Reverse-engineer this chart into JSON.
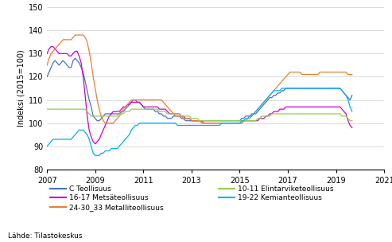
{
  "ylabel": "Indeksi (2015=100)",
  "ylim": [
    80,
    150
  ],
  "yticks": [
    80,
    90,
    100,
    110,
    120,
    130,
    140,
    150
  ],
  "xlim_start": 2007.0,
  "xlim_end": 2021.0,
  "xtick_years": [
    2007,
    2009,
    2011,
    2013,
    2015,
    2017,
    2019,
    2021
  ],
  "source_text": "Lähde: Tilastokeskus",
  "series": {
    "C Teollisuus": {
      "color": "#4472C4",
      "data": [
        120,
        122,
        124,
        126,
        127,
        126,
        125,
        126,
        127,
        126,
        125,
        124,
        124,
        127,
        128,
        127,
        126,
        124,
        122,
        118,
        114,
        110,
        107,
        103,
        102,
        101,
        101,
        102,
        103,
        104,
        104,
        104,
        104,
        104,
        104,
        104,
        104,
        105,
        105,
        106,
        107,
        108,
        109,
        110,
        110,
        109,
        109,
        108,
        107,
        106,
        106,
        106,
        106,
        106,
        105,
        105,
        104,
        104,
        103,
        103,
        102,
        102,
        102,
        103,
        103,
        103,
        103,
        102,
        102,
        101,
        101,
        101,
        101,
        101,
        101,
        101,
        101,
        101,
        101,
        101,
        101,
        101,
        101,
        101,
        101,
        101,
        101,
        101,
        101,
        101,
        101,
        101,
        101,
        101,
        101,
        101,
        101,
        102,
        102,
        103,
        103,
        103,
        104,
        104,
        104,
        105,
        106,
        107,
        108,
        109,
        110,
        111,
        111,
        112,
        112,
        113,
        113,
        114,
        114,
        115,
        115,
        115,
        115,
        115,
        115,
        115,
        115,
        115,
        115,
        115,
        115,
        115,
        115,
        115,
        115,
        115,
        115,
        115,
        115,
        115,
        115,
        115,
        115,
        115,
        115,
        115,
        115,
        114,
        113,
        112,
        111,
        110,
        112
      ]
    },
    "16-17 Metsäteollisuus": {
      "color": "#CC00CC",
      "data": [
        130,
        132,
        133,
        133,
        132,
        131,
        130,
        130,
        130,
        130,
        130,
        129,
        129,
        130,
        131,
        131,
        129,
        126,
        120,
        112,
        103,
        97,
        94,
        92,
        91,
        92,
        93,
        95,
        97,
        99,
        101,
        103,
        104,
        105,
        105,
        105,
        105,
        106,
        107,
        107,
        108,
        108,
        109,
        109,
        109,
        109,
        109,
        108,
        107,
        107,
        107,
        107,
        107,
        107,
        107,
        107,
        106,
        106,
        106,
        106,
        105,
        104,
        104,
        104,
        104,
        104,
        104,
        103,
        103,
        102,
        102,
        102,
        101,
        101,
        101,
        101,
        101,
        101,
        100,
        100,
        100,
        100,
        100,
        100,
        100,
        100,
        100,
        100,
        100,
        100,
        100,
        100,
        100,
        100,
        100,
        100,
        100,
        100,
        101,
        101,
        101,
        101,
        101,
        101,
        101,
        101,
        102,
        102,
        102,
        103,
        103,
        104,
        104,
        105,
        105,
        105,
        106,
        106,
        106,
        107,
        107,
        107,
        107,
        107,
        107,
        107,
        107,
        107,
        107,
        107,
        107,
        107,
        107,
        107,
        107,
        107,
        107,
        107,
        107,
        107,
        107,
        107,
        107,
        107,
        107,
        107,
        107,
        106,
        105,
        104,
        101,
        99,
        98
      ]
    },
    "24-30_33 Metalliteollisuus": {
      "color": "#ED7D31",
      "data": [
        125,
        128,
        130,
        131,
        132,
        133,
        134,
        135,
        136,
        136,
        136,
        136,
        136,
        137,
        138,
        138,
        138,
        138,
        138,
        137,
        135,
        131,
        126,
        120,
        115,
        110,
        106,
        103,
        101,
        100,
        100,
        100,
        100,
        100,
        101,
        102,
        103,
        104,
        106,
        107,
        108,
        109,
        110,
        110,
        110,
        110,
        110,
        110,
        110,
        110,
        110,
        110,
        110,
        110,
        110,
        110,
        110,
        110,
        109,
        108,
        107,
        106,
        105,
        104,
        103,
        103,
        103,
        103,
        102,
        102,
        102,
        102,
        101,
        101,
        101,
        101,
        101,
        100,
        100,
        100,
        100,
        100,
        100,
        100,
        100,
        100,
        100,
        100,
        100,
        100,
        100,
        100,
        100,
        100,
        100,
        100,
        100,
        100,
        101,
        101,
        102,
        102,
        103,
        104,
        105,
        106,
        107,
        108,
        109,
        110,
        111,
        112,
        113,
        114,
        115,
        116,
        117,
        118,
        119,
        120,
        121,
        122,
        122,
        122,
        122,
        122,
        122,
        121,
        121,
        121,
        121,
        121,
        121,
        121,
        121,
        121,
        122,
        122,
        122,
        122,
        122,
        122,
        122,
        122,
        122,
        122,
        122,
        122,
        122,
        122,
        121,
        121,
        121
      ]
    },
    "10-11 Elintarviketeollisuus": {
      "color": "#92D050",
      "data": [
        106,
        106,
        106,
        106,
        106,
        106,
        106,
        106,
        106,
        106,
        106,
        106,
        106,
        106,
        106,
        106,
        106,
        106,
        106,
        106,
        105,
        104,
        103,
        103,
        103,
        103,
        103,
        103,
        103,
        103,
        103,
        103,
        103,
        103,
        103,
        103,
        104,
        104,
        104,
        105,
        105,
        105,
        106,
        106,
        106,
        106,
        106,
        106,
        106,
        106,
        106,
        106,
        106,
        106,
        106,
        106,
        105,
        105,
        105,
        105,
        104,
        104,
        104,
        104,
        104,
        104,
        104,
        103,
        103,
        103,
        103,
        103,
        102,
        102,
        102,
        102,
        101,
        101,
        101,
        101,
        101,
        101,
        101,
        101,
        101,
        101,
        101,
        101,
        101,
        101,
        101,
        101,
        101,
        101,
        101,
        101,
        101,
        101,
        101,
        101,
        101,
        101,
        101,
        101,
        101,
        102,
        102,
        103,
        103,
        103,
        103,
        103,
        104,
        104,
        104,
        104,
        104,
        104,
        104,
        104,
        104,
        104,
        104,
        104,
        104,
        104,
        104,
        104,
        104,
        104,
        104,
        104,
        104,
        104,
        104,
        104,
        104,
        104,
        104,
        104,
        104,
        104,
        104,
        104,
        104,
        104,
        104,
        103,
        103,
        103,
        102,
        101,
        101
      ]
    },
    "19-22 Kemianteollisuus": {
      "color": "#00B0F0",
      "data": [
        90,
        91,
        92,
        93,
        93,
        93,
        93,
        93,
        93,
        93,
        93,
        93,
        93,
        94,
        95,
        96,
        97,
        97,
        97,
        96,
        95,
        93,
        90,
        87,
        86,
        86,
        86,
        87,
        87,
        88,
        88,
        88,
        89,
        89,
        89,
        89,
        90,
        91,
        92,
        93,
        94,
        95,
        97,
        98,
        99,
        99,
        100,
        100,
        100,
        100,
        100,
        100,
        100,
        100,
        100,
        100,
        100,
        100,
        100,
        100,
        100,
        100,
        100,
        100,
        100,
        99,
        99,
        99,
        99,
        99,
        99,
        99,
        99,
        99,
        99,
        99,
        99,
        99,
        99,
        99,
        99,
        99,
        99,
        99,
        99,
        99,
        99,
        100,
        100,
        100,
        100,
        100,
        100,
        100,
        100,
        100,
        100,
        101,
        101,
        102,
        102,
        103,
        103,
        104,
        105,
        106,
        107,
        108,
        109,
        110,
        111,
        112,
        113,
        114,
        114,
        114,
        114,
        115,
        115,
        115,
        115,
        115,
        115,
        115,
        115,
        115,
        115,
        115,
        115,
        115,
        115,
        115,
        115,
        115,
        115,
        115,
        115,
        115,
        115,
        115,
        115,
        115,
        115,
        115,
        115,
        115,
        115,
        114,
        113,
        112,
        110,
        107,
        105
      ]
    }
  },
  "legend_col1": [
    {
      "label": "C Teollisuus",
      "color": "#4472C4"
    },
    {
      "label": "16-17 Metsäteollisuus",
      "color": "#CC00CC"
    },
    {
      "label": "24-30_33 Metalliteollisuus",
      "color": "#ED7D31"
    }
  ],
  "legend_col2": [
    {
      "label": "10-11 Elintarviketeollisuus",
      "color": "#92D050"
    },
    {
      "label": "19-22 Kemianteollisuus",
      "color": "#00B0F0"
    }
  ]
}
